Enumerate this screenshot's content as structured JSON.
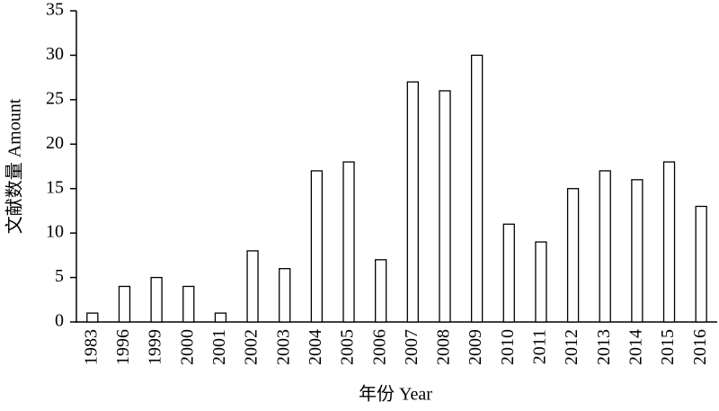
{
  "chart_data": {
    "type": "bar",
    "categories": [
      "1983",
      "1996",
      "1999",
      "2000",
      "2001",
      "2002",
      "2003",
      "2004",
      "2005",
      "2006",
      "2007",
      "2008",
      "2009",
      "2010",
      "2011",
      "2012",
      "2013",
      "2014",
      "2015",
      "2016"
    ],
    "values": [
      1,
      4,
      5,
      4,
      1,
      8,
      6,
      17,
      18,
      7,
      27,
      26,
      30,
      11,
      9,
      15,
      17,
      16,
      18,
      13
    ],
    "color": "#ffffff",
    "ylim": [
      0,
      35
    ],
    "yticks": [
      0,
      5,
      10,
      15,
      20,
      25,
      30,
      35
    ],
    "grid": false,
    "x_label": "年份 Year",
    "y_label": "文献数量 Amount"
  }
}
